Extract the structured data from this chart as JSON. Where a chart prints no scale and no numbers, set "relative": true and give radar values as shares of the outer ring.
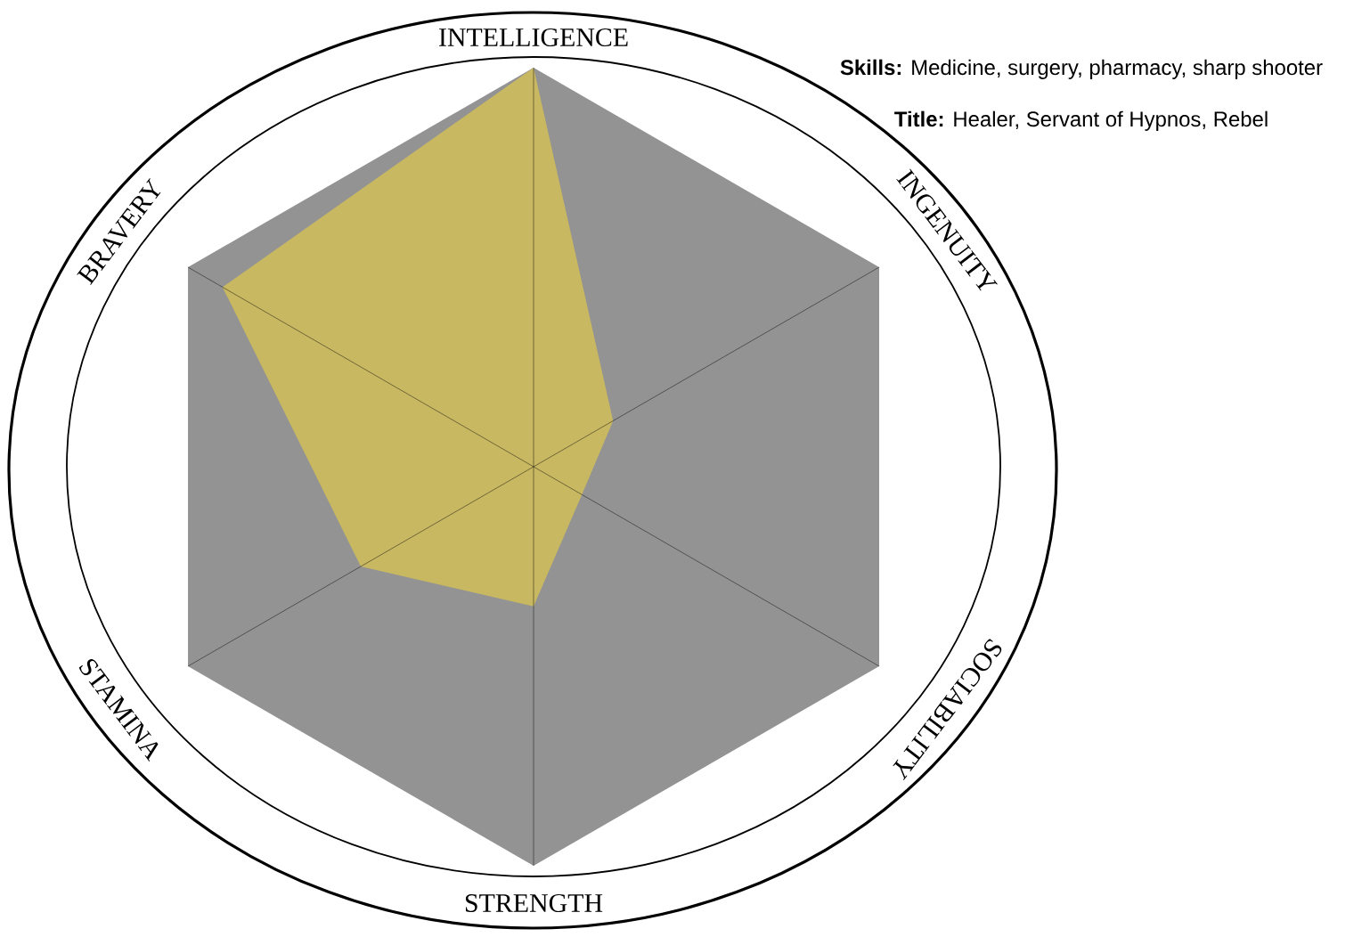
{
  "chart_data": {
    "type": "radar",
    "relative": true,
    "grid": true,
    "categories": [
      "INTELLIGENCE",
      "INGENUITY",
      "SOCIABILITY",
      "STRENGTH",
      "STAMINA",
      "BRAVERY"
    ],
    "series": [
      {
        "color": "#c9b862",
        "values": [
          1,
          0.23,
          0.14,
          0.35,
          0.5,
          0.9
        ]
      }
    ],
    "annotations": [
      "**Skills:** Medicine, surgery, pharmacy, sharp shooter",
      "**Title:** Healer, Servant of Hypnos, Rebel"
    ]
  }
}
